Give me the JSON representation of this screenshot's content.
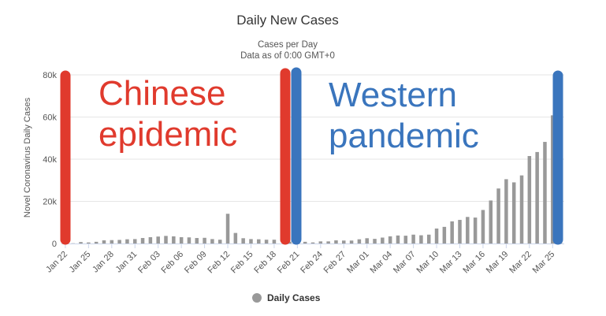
{
  "chart_data": {
    "type": "bar",
    "title": "Daily New Cases",
    "subtitle_line1": "Cases per Day",
    "subtitle_line2": "Data as of 0:00 GMT+0",
    "ylabel": "Novel Coronavirus Daily Cases",
    "ylim": [
      0,
      80000
    ],
    "yticks": [
      {
        "value": 0,
        "label": "0"
      },
      {
        "value": 20000,
        "label": "20k"
      },
      {
        "value": 40000,
        "label": "40k"
      },
      {
        "value": 60000,
        "label": "60k"
      },
      {
        "value": 80000,
        "label": "80k"
      }
    ],
    "x_tick_labels": [
      "Jan 22",
      "Jan 25",
      "Jan 28",
      "Jan 31",
      "Feb 03",
      "Feb 06",
      "Feb 09",
      "Feb 12",
      "Feb 15",
      "Feb 18",
      "Feb 21",
      "Feb 24",
      "Feb 27",
      "Mar 01",
      "Mar 04",
      "Mar 07",
      "Mar 10",
      "Mar 13",
      "Mar 16",
      "Mar 19",
      "Mar 22",
      "Mar 25"
    ],
    "bar_color": "#999999",
    "grid": true,
    "legend_position": "bottom",
    "series": [
      {
        "name": "Daily Cases",
        "values": [
          0,
          100,
          700,
          500,
          800,
          1500,
          1600,
          1700,
          2000,
          2100,
          2600,
          3000,
          3300,
          3600,
          3400,
          3000,
          2900,
          2600,
          2700,
          2100,
          1800,
          14100,
          5000,
          2500,
          2100,
          2000,
          1800,
          1800,
          0,
          900,
          600,
          800,
          500,
          1000,
          1000,
          1500,
          1400,
          1400,
          2000,
          2500,
          2200,
          2800,
          3400,
          3800,
          3700,
          4200,
          3900,
          4200,
          7100,
          7900,
          10500,
          11200,
          12600,
          12300,
          15900,
          20400,
          26100,
          30500,
          29000,
          32300,
          41500,
          43400,
          48200,
          60800,
          64500
        ]
      }
    ]
  },
  "annotations": {
    "left_text_line1": "Chinese",
    "left_text_line2": "epidemic",
    "left_color": "#e03a2d",
    "right_text_line1": "Western",
    "right_text_line2": "pandemic",
    "right_color": "#3a75bd"
  }
}
